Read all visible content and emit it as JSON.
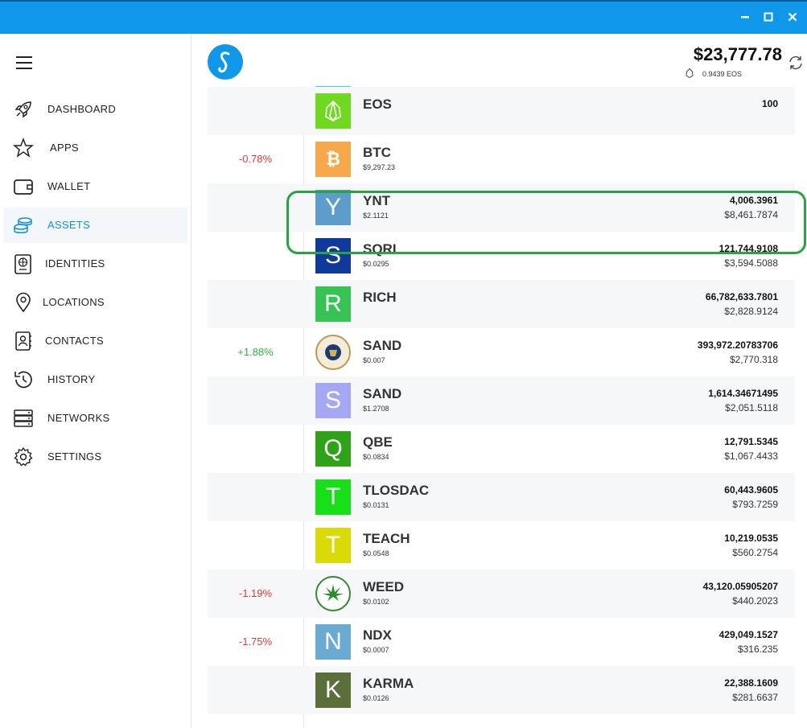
{
  "window": {
    "controls": [
      "minimize",
      "maximize",
      "close"
    ]
  },
  "nav": {
    "items": [
      {
        "label": "DASHBOARD",
        "icon": "rocket-icon"
      },
      {
        "label": "APPS",
        "icon": "star-icon"
      },
      {
        "label": "WALLET",
        "icon": "wallet-icon"
      },
      {
        "label": "ASSETS",
        "icon": "coins-icon",
        "active": true
      },
      {
        "label": "IDENTITIES",
        "icon": "passport-icon"
      },
      {
        "label": "LOCATIONS",
        "icon": "location-pin-icon"
      },
      {
        "label": "CONTACTS",
        "icon": "address-book-icon"
      },
      {
        "label": "HISTORY",
        "icon": "history-icon"
      },
      {
        "label": "NETWORKS",
        "icon": "server-icon"
      },
      {
        "label": "SETTINGS",
        "icon": "gear-icon"
      }
    ]
  },
  "header": {
    "total": "$23,777.78",
    "eos_balance": "0.9439 EOS"
  },
  "assets": [
    {
      "name": "EOS",
      "price": "",
      "amount": "100",
      "value": "",
      "change": "",
      "color": "#6fd91f",
      "letter": ""
    },
    {
      "name": "BTC",
      "price": "$9,297.23",
      "amount": "",
      "value": "",
      "change": "-0.78%",
      "color": "#f7a84a",
      "letter": "₿"
    },
    {
      "name": "YNT",
      "price": "$2.1121",
      "amount": "4,006.3961",
      "value": "$8,461.7874",
      "change": "",
      "color": "#5d9dcb",
      "letter": "Y"
    },
    {
      "name": "SQRL",
      "price": "$0.0295",
      "amount": "121,744.9108",
      "value": "$3,594.5088",
      "change": "",
      "color": "#0f3a9c",
      "letter": "S"
    },
    {
      "name": "RICH",
      "price": "",
      "amount": "66,782,633.7801",
      "value": "$2,828.9124",
      "change": "",
      "color": "#35c452",
      "letter": "R"
    },
    {
      "name": "SAND",
      "price": "$0.007",
      "amount": "393,972.20783706",
      "value": "$2,770.318",
      "change": "+1.88%",
      "color": "#1a3a78",
      "letter": ""
    },
    {
      "name": "SAND",
      "price": "$1.2708",
      "amount": "1,614.34671495",
      "value": "$2,051.5118",
      "change": "",
      "color": "#a4a8f2",
      "letter": "S"
    },
    {
      "name": "QBE",
      "price": "$0.0834",
      "amount": "12,791.5345",
      "value": "$1,067.4433",
      "change": "",
      "color": "#2ea318",
      "letter": "Q"
    },
    {
      "name": "TLOSDAC",
      "price": "$0.0131",
      "amount": "60,443.9605",
      "value": "$793.7259",
      "change": "",
      "color": "#18e018",
      "letter": "T"
    },
    {
      "name": "TEACH",
      "price": "$0.0548",
      "amount": "10,219.0535",
      "value": "$560.2754",
      "change": "",
      "color": "#dada06",
      "letter": "T"
    },
    {
      "name": "WEED",
      "price": "$0.0102",
      "amount": "43,120.05905207",
      "value": "$440.2023",
      "change": "-1.19%",
      "color": "#2e8b2e",
      "letter": ""
    },
    {
      "name": "NDX",
      "price": "$0.0007",
      "amount": "429,049.1527",
      "value": "$316.235",
      "change": "-1.75%",
      "color": "#6aaad2",
      "letter": "N"
    },
    {
      "name": "KARMA",
      "price": "$0.0126",
      "amount": "22,388.1609",
      "value": "$281.6637",
      "change": "",
      "color": "#5b6f3a",
      "letter": "K"
    }
  ]
}
